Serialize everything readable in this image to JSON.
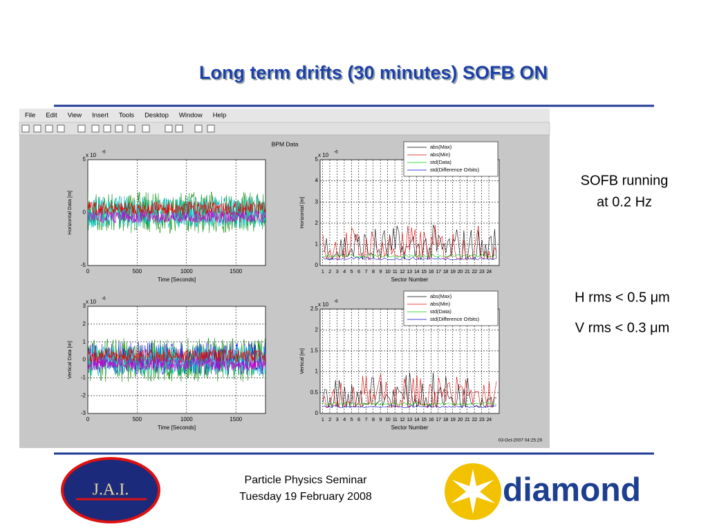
{
  "title": "Long term drifts (30 minutes) SOFB ON",
  "figure": {
    "menu": [
      "File",
      "Edit",
      "View",
      "Insert",
      "Tools",
      "Desktop",
      "Window",
      "Help"
    ],
    "figure_title": "BPM Data",
    "timestamp": "03-Oct-2007 04:25:29",
    "plots": [
      {
        "ylabel": "Horizontal Data [m]",
        "xlabel": "Time [Seconds]",
        "multiplier": "x 10",
        "exponent": "-6",
        "yticks": [
          "5",
          "0",
          "-5"
        ],
        "xticks": [
          "0",
          "500",
          "1000",
          "1500"
        ],
        "legend": []
      },
      {
        "ylabel": "Horizontal [m]",
        "xlabel": "Sector Number",
        "multiplier": "x 10",
        "exponent": "-6",
        "yticks": [
          "5",
          "4",
          "3",
          "2",
          "1",
          "0"
        ],
        "xticks": [
          "1",
          "2",
          "3",
          "4",
          "5",
          "6",
          "7",
          "8",
          "9",
          "10",
          "11",
          "12",
          "13",
          "14",
          "15",
          "16",
          "17",
          "18",
          "19",
          "20",
          "21",
          "22",
          "23",
          "24"
        ],
        "legend": [
          "abs(Max)",
          "abs(Min)",
          "std(Data)",
          "std(Difference Orbits)"
        ]
      },
      {
        "ylabel": "Vertical Data [m]",
        "xlabel": "Time [Seconds]",
        "multiplier": "x 10",
        "exponent": "-6",
        "yticks": [
          "3",
          "2",
          "1",
          "0",
          "-1",
          "-2",
          "-3"
        ],
        "xticks": [
          "0",
          "500",
          "1000",
          "1500"
        ],
        "legend": []
      },
      {
        "ylabel": "Vertical [m]",
        "xlabel": "Sector Number",
        "multiplier": "x 10",
        "exponent": "-6",
        "yticks": [
          "2.5",
          "2",
          "1.5",
          "1",
          "0.5",
          "0"
        ],
        "xticks": [
          "1",
          "2",
          "3",
          "4",
          "5",
          "6",
          "7",
          "8",
          "9",
          "10",
          "11",
          "12",
          "13",
          "14",
          "15",
          "16",
          "17",
          "18",
          "19",
          "20",
          "21",
          "22",
          "23",
          "24"
        ],
        "legend": [
          "abs(Max)",
          "abs(Min)",
          "std(Data)",
          "std(Difference Orbits)"
        ]
      }
    ]
  },
  "notes": {
    "running": [
      "SOFB running",
      "at 0.2 Hz"
    ],
    "h_rms": "H rms < 0.5 μm",
    "v_rms": "V rms < 0.3 μm"
  },
  "footer": {
    "lines": [
      "Particle Physics Seminar",
      "Tuesday 19 February 2008"
    ],
    "left_logo": "J.A.I.",
    "right_logo": "diamond"
  }
}
